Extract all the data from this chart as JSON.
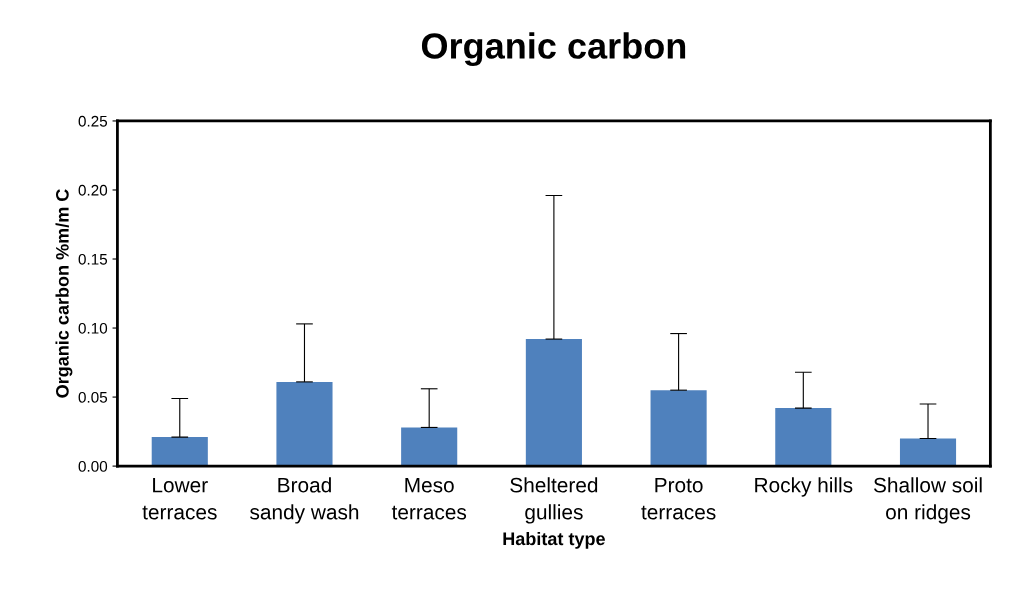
{
  "chart_data": {
    "type": "bar",
    "title": "Organic carbon",
    "xlabel": "Habitat type",
    "ylabel": "Organic carbon %m/m C",
    "categories": [
      "Lower\nterraces",
      "Broad\nsandy wash",
      "Meso\nterraces",
      "Sheltered\ngullies",
      "Proto\nterraces",
      "Rocky hills",
      "Shallow soil\non ridges"
    ],
    "series": [
      {
        "color": "#4f81bd",
        "values": [
          0.021,
          0.061,
          0.028,
          0.092,
          0.055,
          0.042,
          0.02
        ],
        "errors": [
          [
            0.021,
            0.049
          ],
          [
            0.061,
            0.103
          ],
          [
            0.028,
            0.056
          ],
          [
            0.092,
            0.196
          ],
          [
            0.055,
            0.096
          ],
          [
            0.042,
            0.068
          ],
          [
            0.02,
            0.045
          ]
        ]
      }
    ],
    "ylim": [
      0,
      0.25
    ],
    "yticks": [
      {
        "value": 0,
        "label": "0.00"
      },
      {
        "value": 0.05,
        "label": "0.05"
      },
      {
        "value": 0.1,
        "label": "0.10"
      },
      {
        "value": 0.15,
        "label": "0.15"
      },
      {
        "value": 0.2,
        "label": "0.20"
      },
      {
        "value": 0.25,
        "label": "0.25"
      }
    ],
    "grid": false,
    "legend": false
  }
}
